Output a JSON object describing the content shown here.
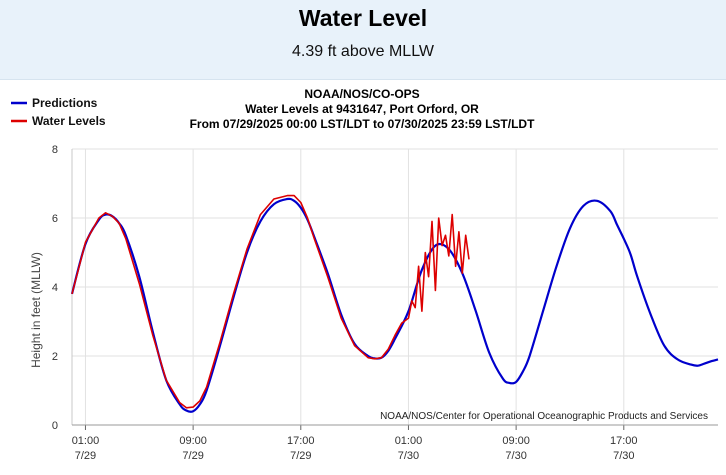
{
  "header": {
    "title": "Water Level",
    "subtitle": "4.39 ft above MLLW"
  },
  "chart_data": {
    "type": "line",
    "title_lines": [
      "NOAA/NOS/CO-OPS",
      "Water Levels at 9431647, Port Orford, OR",
      "From 07/29/2025 00:00 LST/LDT to 07/30/2025 23:59 LST/LDT"
    ],
    "ylabel": "Height in feet (MLLW)",
    "ylim": [
      0,
      8
    ],
    "yticks": [
      0,
      2,
      4,
      6,
      8
    ],
    "xlim_hours": [
      0,
      48
    ],
    "xticks": [
      {
        "hour": 1,
        "time": "01:00",
        "date": "7/29"
      },
      {
        "hour": 9,
        "time": "09:00",
        "date": "7/29"
      },
      {
        "hour": 17,
        "time": "17:00",
        "date": "7/29"
      },
      {
        "hour": 25,
        "time": "01:00",
        "date": "7/30"
      },
      {
        "hour": 33,
        "time": "09:00",
        "date": "7/30"
      },
      {
        "hour": 41,
        "time": "17:00",
        "date": "7/30"
      }
    ],
    "grid": true,
    "legend_position": "top-left",
    "credit": "NOAA/NOS/Center for Operational Oceanographic Products and Services",
    "series": [
      {
        "name": "Predictions",
        "color": "#0000cc",
        "x_hours": [
          0,
          1,
          2,
          2.5,
          3,
          3.5,
          4,
          5,
          6,
          7,
          8,
          8.5,
          9,
          9.5,
          10,
          11,
          12,
          13,
          14,
          15,
          16,
          16.5,
          17,
          17.5,
          18,
          19,
          20,
          21,
          22,
          22.5,
          23,
          23.5,
          24,
          25,
          26,
          27,
          28,
          29,
          30,
          31,
          32,
          32.5,
          33,
          33.5,
          34,
          35,
          36,
          37,
          38,
          39,
          40,
          40.5,
          41,
          41.5,
          42,
          43,
          44,
          45,
          46,
          46.5,
          47,
          47.5,
          48
        ],
        "y_ft": [
          3.8,
          5.25,
          5.95,
          6.1,
          6.05,
          5.85,
          5.5,
          4.3,
          2.7,
          1.3,
          0.6,
          0.42,
          0.4,
          0.6,
          1.0,
          2.3,
          3.7,
          5.0,
          5.9,
          6.4,
          6.55,
          6.5,
          6.3,
          5.95,
          5.45,
          4.4,
          3.2,
          2.35,
          2.0,
          1.93,
          1.95,
          2.15,
          2.5,
          3.3,
          4.5,
          5.2,
          5.1,
          4.4,
          3.3,
          2.1,
          1.35,
          1.22,
          1.25,
          1.55,
          2.0,
          3.3,
          4.6,
          5.7,
          6.35,
          6.5,
          6.2,
          5.8,
          5.4,
          4.95,
          4.3,
          3.2,
          2.3,
          1.9,
          1.75,
          1.72,
          1.78,
          1.85,
          1.9
        ]
      },
      {
        "name": "Water Levels",
        "color": "#dd0000",
        "x_hours": [
          0,
          1,
          2,
          2.5,
          3,
          3.5,
          4,
          5,
          6,
          7,
          8,
          8.5,
          9,
          9.5,
          10,
          11,
          12,
          13,
          14,
          15,
          16,
          16.5,
          17,
          17.5,
          18,
          19,
          20,
          21,
          22,
          22.5,
          23,
          23.5,
          24,
          24.5,
          25,
          25.25,
          25.5,
          25.75,
          26,
          26.25,
          26.5,
          26.75,
          27,
          27.25,
          27.5,
          27.75,
          28,
          28.25,
          28.5,
          28.75,
          29,
          29.25,
          29.5
        ],
        "y_ft": [
          3.8,
          5.3,
          6.0,
          6.15,
          6.05,
          5.85,
          5.4,
          4.1,
          2.6,
          1.3,
          0.65,
          0.5,
          0.52,
          0.7,
          1.1,
          2.4,
          3.8,
          5.1,
          6.1,
          6.55,
          6.65,
          6.65,
          6.45,
          6.0,
          5.4,
          4.3,
          3.1,
          2.3,
          1.95,
          1.92,
          1.95,
          2.2,
          2.6,
          2.95,
          3.1,
          3.6,
          3.4,
          4.6,
          3.3,
          5.0,
          4.3,
          5.9,
          3.9,
          6.0,
          5.2,
          5.5,
          4.9,
          6.1,
          4.6,
          5.6,
          4.4,
          5.5,
          4.8
        ]
      }
    ]
  }
}
